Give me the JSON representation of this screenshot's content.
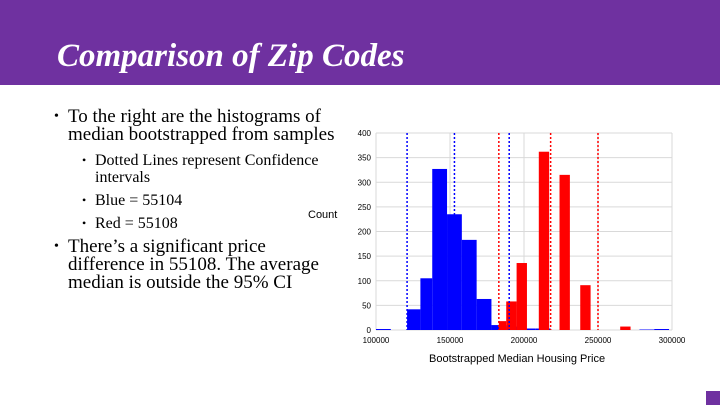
{
  "slide": {
    "title": "Comparison of Zip Codes",
    "bullets": [
      {
        "text": "To the right are the histograms of median bootstrapped from samples",
        "sub": [
          "Dotted Lines represent Confidence intervals",
          "Blue = 55104",
          "Red = 55108"
        ]
      },
      {
        "text": "There’s a significant price difference in 55108. The average median is outside the 95% CI",
        "sub": []
      }
    ]
  },
  "colors": {
    "accent": "#6f31a0",
    "blue": "#0000ff",
    "red": "#ff0000",
    "grid": "#d9d9d9"
  },
  "chart_data": {
    "type": "histogram",
    "xlabel": "Bootstrapped Median Housing Price",
    "ylabel": "Count",
    "xlim": [
      100000,
      300000
    ],
    "ylim": [
      0,
      400
    ],
    "xticks": [
      100000,
      150000,
      200000,
      250000,
      300000
    ],
    "yticks": [
      0,
      50,
      100,
      150,
      200,
      250,
      300,
      350,
      400
    ],
    "grid": true,
    "series": [
      {
        "color": "#0000ff",
        "bins": [
          [
            100000,
            110000,
            2
          ],
          [
            121000,
            130000,
            42
          ],
          [
            130000,
            138000,
            105
          ],
          [
            138000,
            148000,
            327
          ],
          [
            148000,
            158000,
            235
          ],
          [
            158000,
            168000,
            183
          ],
          [
            168000,
            178000,
            63
          ],
          [
            178000,
            188000,
            10
          ],
          [
            188000,
            198000,
            7
          ],
          [
            198000,
            208000,
            3
          ],
          [
            208000,
            218000,
            3
          ],
          [
            278000,
            288000,
            1
          ],
          [
            288000,
            298000,
            2
          ]
        ],
        "ci": [
          121000,
          153000,
          190000
        ]
      },
      {
        "color": "#ff0000",
        "bins": [
          [
            183000,
            188000,
            18
          ],
          [
            188000,
            195000,
            58
          ],
          [
            195000,
            202000,
            136
          ],
          [
            210000,
            217000,
            362
          ],
          [
            224000,
            231000,
            315
          ],
          [
            238000,
            245000,
            91
          ],
          [
            265000,
            272000,
            7
          ]
        ],
        "ci": [
          183000,
          218000,
          250000
        ]
      }
    ]
  }
}
